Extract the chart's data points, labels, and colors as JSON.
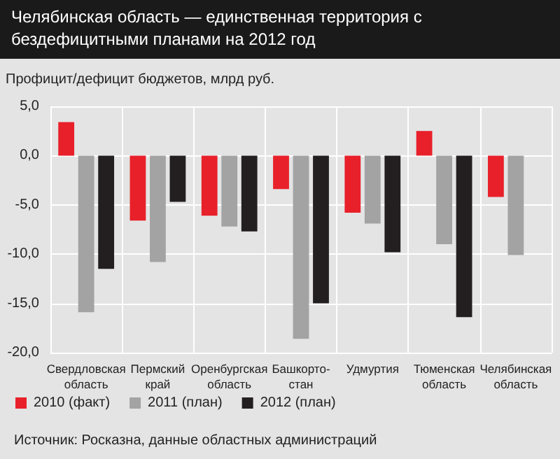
{
  "chart_data": {
    "type": "bar",
    "title": "Челябинская область — единственная территория с бездефицитными планами на 2012 год",
    "ylabel": "Профицит/дефицит бюджетов, млрд руб.",
    "categories": [
      "Свердловская\nобласть",
      "Пермский\nкрай",
      "Оренбургская\nобласть",
      "Башкорто-\nстан",
      "Удмуртия",
      "Тюменская\nобласть",
      "Челябинская\nобласть"
    ],
    "series": [
      {
        "name": "2010 (факт)",
        "color": "#e8202a",
        "values": [
          3.4,
          -6.6,
          -6.1,
          -3.4,
          -5.8,
          2.5,
          -4.2
        ]
      },
      {
        "name": "2011 (план)",
        "color": "#a3a3a3",
        "values": [
          -15.9,
          -10.8,
          -7.2,
          -18.6,
          -6.9,
          -9.0,
          -10.1
        ]
      },
      {
        "name": "2012 (план)",
        "color": "#231f20",
        "values": [
          -11.5,
          -4.7,
          -7.7,
          -15.0,
          -9.8,
          -16.4,
          null
        ]
      }
    ],
    "ylim": [
      -20,
      5
    ],
    "yticks": [
      {
        "value": -20,
        "label": "-20,0"
      },
      {
        "value": -15,
        "label": "-15,0"
      },
      {
        "value": -10,
        "label": "-10,0"
      },
      {
        "value": -5,
        "label": "-5,0"
      },
      {
        "value": 0,
        "label": "0,0"
      },
      {
        "value": 5,
        "label": "5,0"
      }
    ],
    "grid": true,
    "legend": "bottom left",
    "annotations": [
      "Источник: Росказна, данные областных администраций"
    ]
  }
}
